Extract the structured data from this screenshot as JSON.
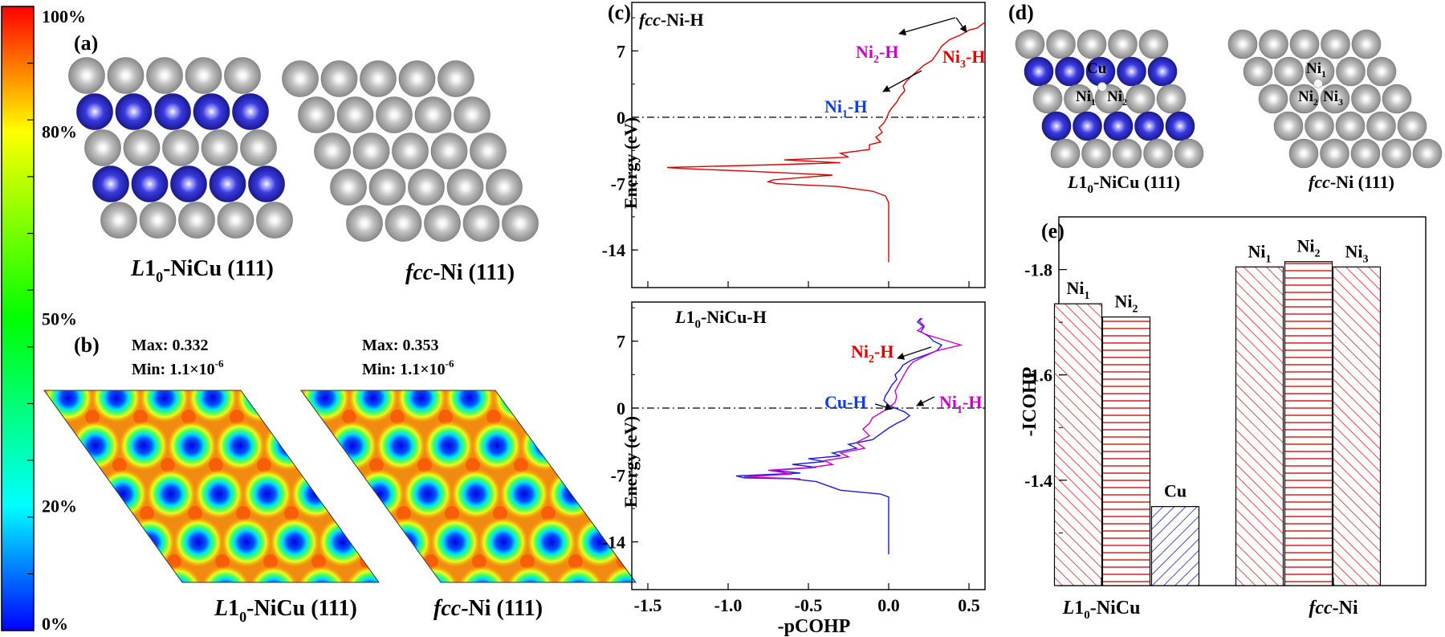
{
  "colorbar": {
    "ticks": [
      "100%",
      "80%",
      "50%",
      "20%",
      "0%"
    ],
    "tick_values": [
      100,
      80,
      50,
      20,
      0
    ],
    "colors": [
      "#0000ff",
      "#00ffff",
      "#00ff00",
      "#ffff00",
      "#ff8000",
      "#ff0000"
    ]
  },
  "panel_a": {
    "label": "(a)",
    "left_caption": {
      "pre": "L",
      "main": "1",
      "sub": "0",
      "post": "-NiCu (111)"
    },
    "right_caption": {
      "italic": "fcc",
      "post": "-Ni (111)"
    },
    "colors": {
      "ni": "#a8a8a8",
      "cu": "#3838d8"
    }
  },
  "panel_b": {
    "label": "(b)",
    "left": {
      "max": "Max: 0.332",
      "min_pre": "Min: 1.1×10",
      "min_exp": "-6"
    },
    "right": {
      "max": "Max: 0.353",
      "min_pre": "Min: 1.1×10",
      "min_exp": "-6"
    },
    "left_caption": {
      "pre": "L",
      "main": "1",
      "sub": "0",
      "post": "-NiCu (111)"
    },
    "right_caption": {
      "italic": "fcc",
      "post": "-Ni (111)"
    }
  },
  "panel_c": {
    "label": "(c)",
    "ylabel": "Energy (eV)",
    "xlabel": "-pCOHP",
    "yticks": [
      "7",
      "0",
      "-7",
      "-14"
    ],
    "xticks": [
      "-1.5",
      "-1.0",
      "-0.5",
      "0.0",
      "0.5"
    ],
    "top": {
      "title_italic": "fcc",
      "title_post": "-Ni-H",
      "annotations": [
        {
          "base": "Ni",
          "sub": "2",
          "post": "-H",
          "color": "#cc00cc"
        },
        {
          "base": "Ni",
          "sub": "3",
          "post": "-H",
          "color": "#e00000"
        },
        {
          "base": "Ni",
          "sub": "1",
          "post": "-H",
          "color": "#1040e0"
        }
      ]
    },
    "bottom": {
      "title_pre": "L",
      "title_main": "1",
      "title_sub": "0",
      "title_post": "-NiCu-H",
      "annotations": [
        {
          "base": "Ni",
          "sub": "2",
          "post": "-H",
          "color": "#e00000"
        },
        {
          "base": "Cu-H",
          "sub": "",
          "post": "",
          "color": "#1040e0"
        },
        {
          "base": "Ni",
          "sub": "1",
          "post": "-H",
          "color": "#cc00cc"
        }
      ]
    }
  },
  "panel_d": {
    "label": "(d)",
    "left_labels": [
      "Cu",
      "Ni",
      "1",
      "Ni",
      "2"
    ],
    "right_labels": [
      "Ni",
      "1",
      "Ni",
      "2",
      "Ni",
      "3"
    ],
    "left_caption": {
      "pre": "L",
      "main": "1",
      "sub": "0",
      "post": "-NiCu (111)"
    },
    "right_caption": {
      "italic": "fcc",
      "post": "-Ni (111)"
    }
  },
  "chart_data": [
    {
      "type": "line",
      "title": "fcc-Ni-H",
      "xlabel": "-pCOHP",
      "ylabel": "Energy (eV)",
      "xlim": [
        -1.6,
        0.6
      ],
      "ylim": [
        -15.5,
        10.5
      ],
      "series": [
        {
          "name": "fcc-Ni-H",
          "color": "#e00000",
          "points": [
            [
              0.0,
              -15.3
            ],
            [
              0.0,
              -12
            ],
            [
              0.0,
              -9
            ],
            [
              -0.02,
              -8.3
            ],
            [
              -0.1,
              -7.8
            ],
            [
              -0.32,
              -7.3
            ],
            [
              -0.7,
              -7.0
            ],
            [
              -0.75,
              -6.8
            ],
            [
              -0.72,
              -6.6
            ],
            [
              -0.35,
              -6.1
            ],
            [
              -0.85,
              -5.7
            ],
            [
              -1.3,
              -5.4
            ],
            [
              -1.38,
              -5.3
            ],
            [
              -0.7,
              -5.0
            ],
            [
              -0.3,
              -4.8
            ],
            [
              -0.65,
              -4.5
            ],
            [
              -0.25,
              -4.2
            ],
            [
              -0.3,
              -3.8
            ],
            [
              -0.12,
              -3.4
            ],
            [
              -0.12,
              -2.9
            ],
            [
              -0.05,
              -2.6
            ],
            [
              -0.08,
              -2.1
            ],
            [
              -0.04,
              -1.6
            ],
            [
              -0.06,
              -1.1
            ],
            [
              -0.03,
              -0.6
            ],
            [
              -0.01,
              0.0
            ],
            [
              0.0,
              0.5
            ],
            [
              0.02,
              1.0
            ],
            [
              0.05,
              1.6
            ],
            [
              0.07,
              2.2
            ],
            [
              0.1,
              2.8
            ],
            [
              0.09,
              3.3
            ],
            [
              0.11,
              3.8
            ],
            [
              0.14,
              4.3
            ],
            [
              0.18,
              4.9
            ],
            [
              0.22,
              5.5
            ],
            [
              0.27,
              6.0
            ],
            [
              0.3,
              6.7
            ],
            [
              0.33,
              7.5
            ],
            [
              0.38,
              8.2
            ],
            [
              0.45,
              8.7
            ],
            [
              0.5,
              9.2
            ],
            [
              0.55,
              9.4
            ],
            [
              0.58,
              9.8
            ],
            [
              0.6,
              10.0
            ]
          ]
        }
      ]
    },
    {
      "type": "line",
      "title": "L10-NiCu-H",
      "xlabel": "-pCOHP",
      "ylabel": "Energy (eV)",
      "xlim": [
        -1.6,
        0.6
      ],
      "ylim": [
        -15.5,
        10.5
      ],
      "series": [
        {
          "name": "Cu-H",
          "color": "#1a1adc",
          "points": [
            [
              0.0,
              -15.3
            ],
            [
              0.0,
              -12
            ],
            [
              0.0,
              -10
            ],
            [
              0.0,
              -9.3
            ],
            [
              -0.05,
              -9.0
            ],
            [
              -0.3,
              -8.6
            ],
            [
              -0.4,
              -8.0
            ],
            [
              -0.45,
              -7.7
            ],
            [
              -0.6,
              -7.4
            ],
            [
              -0.9,
              -7.3
            ],
            [
              -0.95,
              -7.1
            ],
            [
              -0.55,
              -6.8
            ],
            [
              -0.72,
              -6.5
            ],
            [
              -0.45,
              -6.2
            ],
            [
              -0.6,
              -5.9
            ],
            [
              -0.4,
              -5.6
            ],
            [
              -0.5,
              -5.3
            ],
            [
              -0.3,
              -5.0
            ],
            [
              -0.35,
              -4.7
            ],
            [
              -0.2,
              -4.2
            ],
            [
              -0.25,
              -3.8
            ],
            [
              -0.1,
              -3.3
            ],
            [
              -0.05,
              -2.7
            ],
            [
              0.0,
              -2.1
            ],
            [
              0.05,
              -1.6
            ],
            [
              0.1,
              -1.2
            ],
            [
              0.13,
              -0.8
            ],
            [
              0.1,
              -0.4
            ],
            [
              0.04,
              0.0
            ],
            [
              0.0,
              0.3
            ],
            [
              -0.03,
              0.8
            ],
            [
              -0.02,
              1.3
            ],
            [
              0.0,
              1.8
            ],
            [
              0.02,
              2.4
            ],
            [
              0.05,
              3.0
            ],
            [
              0.04,
              3.5
            ],
            [
              0.07,
              4.0
            ],
            [
              0.09,
              4.5
            ],
            [
              0.14,
              5.0
            ],
            [
              0.22,
              5.5
            ],
            [
              0.3,
              6.0
            ],
            [
              0.33,
              6.6
            ],
            [
              0.28,
              7.0
            ],
            [
              0.25,
              7.5
            ],
            [
              0.2,
              8.0
            ],
            [
              0.22,
              8.5
            ],
            [
              0.18,
              9.0
            ],
            [
              0.2,
              9.4
            ]
          ]
        },
        {
          "name": "Ni1-H",
          "color": "#cc00cc",
          "points": [
            [
              -0.55,
              -7.4
            ],
            [
              -0.9,
              -7.2
            ],
            [
              -0.6,
              -6.9
            ],
            [
              -0.75,
              -6.5
            ],
            [
              -0.48,
              -6.2
            ],
            [
              -0.35,
              -5.9
            ],
            [
              -0.4,
              -5.5
            ],
            [
              -0.25,
              -5.1
            ],
            [
              -0.3,
              -4.7
            ],
            [
              -0.15,
              -4.2
            ],
            [
              -0.2,
              -3.6
            ],
            [
              -0.12,
              -2.9
            ],
            [
              -0.16,
              -2.2
            ],
            [
              -0.12,
              -1.6
            ],
            [
              -0.1,
              -1.0
            ],
            [
              -0.05,
              -0.5
            ],
            [
              0.0,
              0.0
            ],
            [
              0.04,
              0.6
            ],
            [
              0.05,
              1.2
            ],
            [
              0.04,
              1.8
            ],
            [
              0.06,
              2.4
            ],
            [
              0.08,
              3.0
            ],
            [
              0.1,
              3.6
            ],
            [
              0.12,
              4.2
            ],
            [
              0.15,
              4.8
            ],
            [
              0.22,
              5.4
            ],
            [
              0.3,
              6.0
            ],
            [
              0.45,
              6.6
            ],
            [
              0.35,
              7.1
            ],
            [
              0.25,
              7.6
            ],
            [
              0.18,
              8.1
            ],
            [
              0.22,
              8.6
            ],
            [
              0.19,
              9.1
            ],
            [
              0.21,
              9.4
            ]
          ]
        }
      ]
    },
    {
      "type": "bar",
      "title": "",
      "xlabel": "",
      "ylabel": "-ICOHP",
      "ylim": [
        -1.2,
        -1.9
      ],
      "yticks": [
        "-1.8",
        "-1.6",
        "-1.4"
      ],
      "tick_values": [
        -1.8,
        -1.6,
        -1.4
      ],
      "group_labels": [
        {
          "pre": "L",
          "main": "1",
          "sub": "0",
          "post": "-NiCu"
        },
        {
          "italic": "fcc",
          "post": "-Ni"
        }
      ],
      "bars": [
        {
          "label": "Ni",
          "sub": "1",
          "group": 0,
          "value": -1.735,
          "color": "#dd2020",
          "pattern": "diag"
        },
        {
          "label": "Ni",
          "sub": "2",
          "group": 0,
          "value": -1.71,
          "color": "#dd2020",
          "pattern": "horiz"
        },
        {
          "label": "Cu",
          "sub": "",
          "group": 0,
          "value": -1.35,
          "color": "#1a1adc",
          "pattern": "diag"
        },
        {
          "label": "Ni",
          "sub": "1",
          "group": 1,
          "value": -1.805,
          "color": "#dd2020",
          "pattern": "diag"
        },
        {
          "label": "Ni",
          "sub": "2",
          "group": 1,
          "value": -1.815,
          "color": "#dd2020",
          "pattern": "horiz"
        },
        {
          "label": "Ni",
          "sub": "3",
          "group": 1,
          "value": -1.805,
          "color": "#dd2020",
          "pattern": "diag"
        }
      ]
    }
  ]
}
